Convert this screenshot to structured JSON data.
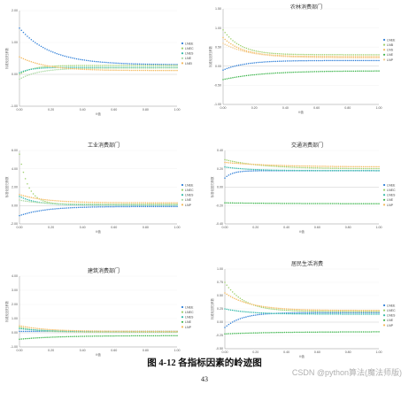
{
  "legend_colors": {
    "LNEE": "#2f7fd8",
    "LNEC": "#9ccf6a",
    "LNES": "#31b9a8",
    "LNE": "#a8d8a0",
    "LNEI": "#f3b85b",
    "LNP": "#f3c98a",
    "LNEB": "#2f7fd8",
    "LNB": "#31b9a8",
    "LNS": "#f3b85b",
    "LNN": "#a8d8a0",
    "LNC": "#9ccf6a",
    "LNX": "#3cb44b"
  },
  "figure_caption": "图 4-12 各指标因素的岭迹图",
  "page_number": "43",
  "watermark": "CSDN @python算法(魔法师版)",
  "chart_data": [
    {
      "type": "scatter",
      "title": "",
      "xlabel": "K值",
      "ylabel": "标准化回归系数",
      "xlim": [
        0,
        1
      ],
      "ylim": [
        -1,
        2
      ],
      "yticks": [
        "-1.00",
        "0.00",
        "1.00",
        "2.00"
      ],
      "xticks": [
        "0.00",
        "0.20",
        "0.40",
        "0.60",
        "0.80",
        "1.00"
      ],
      "legend_position": "right",
      "legend": [
        "LNEE",
        "LNEC",
        "LNES",
        "LNE",
        "LNEI"
      ],
      "series": [
        {
          "name": "LNEE",
          "color": "#2f7fd8",
          "start": 1.45,
          "end": 0.3,
          "rate": 5
        },
        {
          "name": "LNEC",
          "color": "#9ccf6a",
          "start": 0.0,
          "end": 0.28,
          "rate": 12
        },
        {
          "name": "LNES",
          "color": "#31b9a8",
          "start": 0.05,
          "end": 0.22,
          "rate": 14
        },
        {
          "name": "LNE",
          "color": "#a8d8a0",
          "start": -0.15,
          "end": 0.2,
          "rate": 8
        },
        {
          "name": "LNEI",
          "color": "#f3b85b",
          "start": 0.55,
          "end": 0.12,
          "rate": 6
        }
      ]
    },
    {
      "type": "scatter",
      "title": "农林消费部门",
      "xlabel": "K值",
      "ylabel": "标准化回归系数",
      "xlim": [
        0,
        1
      ],
      "ylim": [
        -1,
        1.5
      ],
      "yticks": [
        "-1.00",
        "-0.50",
        "0.00",
        "0.50",
        "1.00",
        "1.50"
      ],
      "xticks": [
        "0.00",
        "0.20",
        "0.40",
        "0.60",
        "0.80",
        "1.00"
      ],
      "legend_position": "right",
      "legend": [
        "LNEE",
        "LNB",
        "LNS",
        "LNE",
        "LNP"
      ],
      "series": [
        {
          "name": "LNEE",
          "color": "#2f7fd8",
          "start": -0.1,
          "end": 0.15,
          "rate": 7
        },
        {
          "name": "LNB",
          "color": "#9ccf6a",
          "start": 0.95,
          "end": 0.3,
          "rate": 9
        },
        {
          "name": "LNS",
          "color": "#f3b85b",
          "start": 0.75,
          "end": 0.25,
          "rate": 8
        },
        {
          "name": "LNE",
          "color": "#3cb44b",
          "start": -0.35,
          "end": -0.12,
          "rate": 4
        },
        {
          "name": "LNP",
          "color": "#f3c98a",
          "start": 0.6,
          "end": 0.22,
          "rate": 6
        }
      ]
    },
    {
      "type": "scatter",
      "title": "工业消费部门",
      "xlabel": "K值",
      "ylabel": "标准化回归系数",
      "xlim": [
        0,
        1
      ],
      "ylim": [
        -2,
        6
      ],
      "yticks": [
        "-2.00",
        "0.00",
        "2.00",
        "4.00",
        "6.00"
      ],
      "xticks": [
        "0.00",
        "0.20",
        "0.40",
        "0.60",
        "0.80",
        "1.00"
      ],
      "legend_position": "right",
      "legend": [
        "LNEE",
        "LNEC",
        "LNES",
        "LNE",
        "LNP"
      ],
      "series": [
        {
          "name": "LNEE",
          "color": "#2f7fd8",
          "start": -1.1,
          "end": -0.1,
          "rate": 6
        },
        {
          "name": "LNEC",
          "color": "#9ccf6a",
          "start": 5.6,
          "end": 0.15,
          "rate": 18
        },
        {
          "name": "LNES",
          "color": "#31b9a8",
          "start": 1.0,
          "end": 0.05,
          "rate": 9
        },
        {
          "name": "LNE",
          "color": "#a8d8a0",
          "start": 0.6,
          "end": 0.1,
          "rate": 7
        },
        {
          "name": "LNP",
          "color": "#f3b85b",
          "start": 1.2,
          "end": 0.3,
          "rate": 6
        }
      ]
    },
    {
      "type": "scatter",
      "title": "交通消费部门",
      "xlabel": "K值",
      "ylabel": "标准化回归系数",
      "xlim": [
        0,
        1
      ],
      "ylim": [
        -0.4,
        0.4
      ],
      "yticks": [
        "-0.40",
        "-0.20",
        "0.00",
        "0.20",
        "0.40"
      ],
      "xticks": [
        "0.00",
        "0.20",
        "0.40",
        "0.60",
        "0.80",
        "1.00"
      ],
      "legend_position": "right",
      "legend": [
        "LNEE",
        "LNEC",
        "LNES",
        "LNE",
        "LNP"
      ],
      "series": [
        {
          "name": "LNEE",
          "color": "#2f7fd8",
          "start": 0.1,
          "end": 0.18,
          "rate": 20
        },
        {
          "name": "LNEC",
          "color": "#9ccf6a",
          "start": 0.3,
          "end": 0.2,
          "rate": 4
        },
        {
          "name": "LNES",
          "color": "#31b9a8",
          "start": 0.22,
          "end": 0.18,
          "rate": 6
        },
        {
          "name": "LNE",
          "color": "#3cb44b",
          "start": -0.17,
          "end": -0.18,
          "rate": 3
        },
        {
          "name": "LNP",
          "color": "#f3b85b",
          "start": 0.27,
          "end": 0.22,
          "rate": 3
        }
      ]
    },
    {
      "type": "scatter",
      "title": "建筑消费部门",
      "xlabel": "K值",
      "ylabel": "标准化回归系数",
      "xlim": [
        0,
        1
      ],
      "ylim": [
        -1,
        4
      ],
      "yticks": [
        "-1.00",
        "0.00",
        "1.00",
        "2.00",
        "3.00",
        "4.00"
      ],
      "xticks": [
        "0.00",
        "0.20",
        "0.40",
        "0.60",
        "0.80",
        "1.00"
      ],
      "legend_position": "right",
      "legend": [
        "LNEE",
        "LNEC",
        "LNES",
        "LNE",
        "LNP"
      ],
      "series": [
        {
          "name": "LNEE",
          "color": "#2f7fd8",
          "start": 0.1,
          "end": 0.1,
          "rate": 5
        },
        {
          "name": "LNEC",
          "color": "#9ccf6a",
          "start": 0.4,
          "end": 0.05,
          "rate": 9
        },
        {
          "name": "LNES",
          "color": "#31b9a8",
          "start": 0.3,
          "end": 0.1,
          "rate": 7
        },
        {
          "name": "LNE",
          "color": "#3cb44b",
          "start": -0.45,
          "end": -0.2,
          "rate": 4
        },
        {
          "name": "LNP",
          "color": "#f3b85b",
          "start": 0.5,
          "end": 0.1,
          "rate": 6
        }
      ]
    },
    {
      "type": "scatter",
      "title": "居民生活消费",
      "xlabel": "K值",
      "ylabel": "标准化回归系数",
      "xlim": [
        0,
        1
      ],
      "ylim": [
        -0.5,
        1
      ],
      "yticks": [
        "-0.50",
        "-0.25",
        "0.00",
        "0.25",
        "0.50",
        "0.75",
        "1.00"
      ],
      "xticks": [
        "0.00",
        "0.20",
        "0.40",
        "0.60",
        "0.80",
        "1.00"
      ],
      "legend_position": "right",
      "legend": [
        "LNEE",
        "LNEC",
        "LNES",
        "LNE",
        "LNP"
      ],
      "series": [
        {
          "name": "LNEE",
          "color": "#2f7fd8",
          "start": -0.1,
          "end": 0.18,
          "rate": 9
        },
        {
          "name": "LNEC",
          "color": "#9ccf6a",
          "start": 0.75,
          "end": 0.2,
          "rate": 8
        },
        {
          "name": "LNES",
          "color": "#31b9a8",
          "start": 0.25,
          "end": 0.15,
          "rate": 6
        },
        {
          "name": "LNE",
          "color": "#3cb44b",
          "start": -0.22,
          "end": -0.18,
          "rate": 3
        },
        {
          "name": "LNP",
          "color": "#f3b85b",
          "start": 0.55,
          "end": 0.22,
          "rate": 6
        }
      ]
    }
  ]
}
